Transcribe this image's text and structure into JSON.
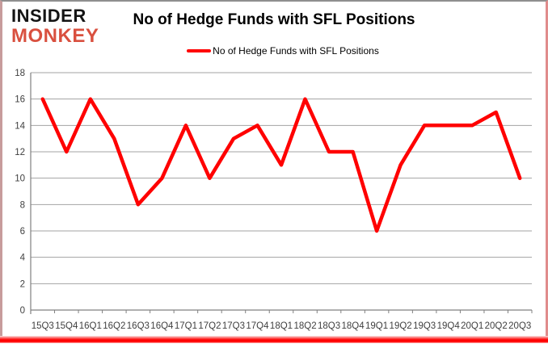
{
  "logo": {
    "line1": "INSIDER",
    "line2": "MONKEY"
  },
  "header": {
    "title": "No of Hedge Funds with SFL Positions"
  },
  "legend": {
    "label": "No of Hedge Funds with SFL Positions"
  },
  "colors": {
    "line": "#ff0000",
    "logo_black": "#141414",
    "logo_red": "#d9503f",
    "grid": "#a3a3a3",
    "axis": "#808080",
    "tick_label": "#3f3f3f",
    "title": "#000000"
  },
  "chart_data": {
    "type": "line",
    "title": "No of Hedge Funds with SFL Positions",
    "series_name": "No of Hedge Funds with SFL Positions",
    "categories": [
      "15Q3",
      "15Q4",
      "16Q1",
      "16Q2",
      "16Q3",
      "16Q4",
      "17Q1",
      "17Q2",
      "17Q3",
      "17Q4",
      "18Q1",
      "18Q2",
      "18Q3",
      "18Q4",
      "19Q1",
      "19Q2",
      "19Q3",
      "19Q4",
      "20Q1",
      "20Q2",
      "20Q3"
    ],
    "values": [
      16,
      12,
      16,
      13,
      8,
      10,
      14,
      10,
      13,
      14,
      11,
      16,
      12,
      12,
      6,
      11,
      14,
      14,
      14,
      15,
      10
    ],
    "xlabel": "",
    "ylabel": "",
    "ylim": [
      0,
      18
    ],
    "ytick_step": 2,
    "grid": true,
    "legend_position": "top"
  }
}
